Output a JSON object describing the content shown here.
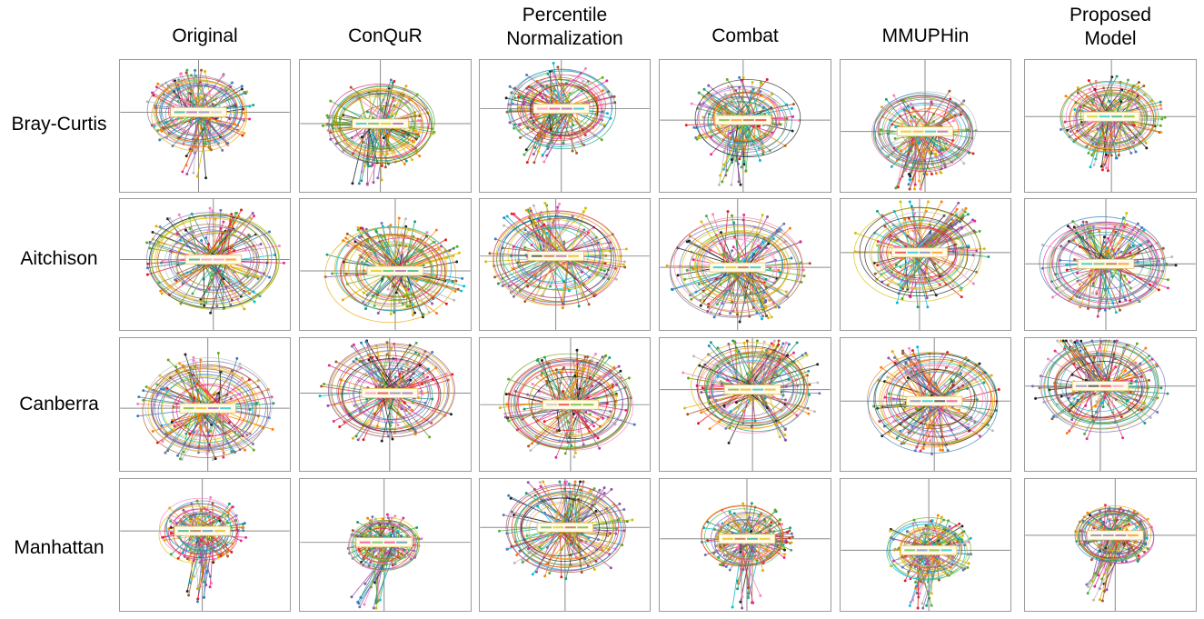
{
  "columns": [
    {
      "line1": "Original",
      "line2": ""
    },
    {
      "line1": "ConQuR",
      "line2": ""
    },
    {
      "line1": "Percentile",
      "line2": "Normalization"
    },
    {
      "line1": "Combat",
      "line2": ""
    },
    {
      "line1": "MMUPHin",
      "line2": ""
    },
    {
      "line1": "Proposed",
      "line2": "Model"
    }
  ],
  "rows": [
    "Bray-Curtis",
    "Aitchison",
    "Canberra",
    "Manhattan"
  ],
  "chart_data": {
    "type": "scatter",
    "description_kind": "grid of ordination star plots (samples joined to batch centroids with confidence ellipses)",
    "row_labels": [
      "Bray-Curtis",
      "Aitchison",
      "Canberra",
      "Manhattan"
    ],
    "column_labels": [
      "Original",
      "ConQuR",
      "Percentile Normalization",
      "Combat",
      "MMUPHin",
      "Proposed Model"
    ],
    "palette": [
      "#e41a1c",
      "#377eb8",
      "#4daf4a",
      "#984ea3",
      "#ff7f00",
      "#d4c000",
      "#a65628",
      "#f781bf",
      "#222222",
      "#00bcd4",
      "#e6ab02",
      "#66a61e",
      "#7570b3",
      "#e7298a",
      "#1b9e77",
      "#bbbbbb"
    ],
    "panels": [
      [
        {
          "spread": 0.62,
          "tail": 0.95,
          "tailAngle": 95,
          "seed": 11
        },
        {
          "spread": 0.65,
          "tail": 0.9,
          "tailAngle": 100,
          "seed": 12
        },
        {
          "spread": 0.66,
          "tail": 0.85,
          "tailAngle": 115,
          "seed": 13
        },
        {
          "spread": 0.64,
          "tail": 0.95,
          "tailAngle": 98,
          "seed": 14
        },
        {
          "spread": 0.64,
          "tail": 0.9,
          "tailAngle": 105,
          "seed": 15
        },
        {
          "spread": 0.6,
          "tail": 0.75,
          "tailAngle": 105,
          "seed": 16
        }
      ],
      [
        {
          "spread": 0.8,
          "tail": 0.8,
          "tailAngle": -60,
          "seed": 21
        },
        {
          "spread": 0.8,
          "tail": 0.8,
          "tailAngle": -120,
          "seed": 22
        },
        {
          "spread": 0.8,
          "tail": 0.75,
          "tailAngle": -110,
          "seed": 23
        },
        {
          "spread": 0.82,
          "tail": 0.8,
          "tailAngle": 60,
          "seed": 24
        },
        {
          "spread": 0.8,
          "tail": 0.85,
          "tailAngle": -45,
          "seed": 25
        },
        {
          "spread": 0.78,
          "tail": 0.8,
          "tailAngle": -120,
          "seed": 26
        }
      ],
      [
        {
          "spread": 0.8,
          "tail": 0.85,
          "tailAngle": -115,
          "seed": 31
        },
        {
          "spread": 0.78,
          "tail": 0.85,
          "tailAngle": -120,
          "seed": 32
        },
        {
          "spread": 0.8,
          "tail": 0.8,
          "tailAngle": -70,
          "seed": 33
        },
        {
          "spread": 0.82,
          "tail": 0.85,
          "tailAngle": -60,
          "seed": 34
        },
        {
          "spread": 0.8,
          "tail": 0.85,
          "tailAngle": -120,
          "seed": 35
        },
        {
          "spread": 0.78,
          "tail": 0.85,
          "tailAngle": -120,
          "seed": 36
        }
      ],
      [
        {
          "spread": 0.5,
          "tail": 1.0,
          "tailAngle": 92,
          "seed": 41
        },
        {
          "spread": 0.42,
          "tail": 1.0,
          "tailAngle": 105,
          "seed": 42
        },
        {
          "spread": 0.78,
          "tail": 0.7,
          "tailAngle": -80,
          "seed": 43
        },
        {
          "spread": 0.52,
          "tail": 1.0,
          "tailAngle": 90,
          "seed": 44
        },
        {
          "spread": 0.52,
          "tail": 0.9,
          "tailAngle": 95,
          "seed": 45
        },
        {
          "spread": 0.45,
          "tail": 0.95,
          "tailAngle": 105,
          "seed": 46
        }
      ]
    ]
  }
}
